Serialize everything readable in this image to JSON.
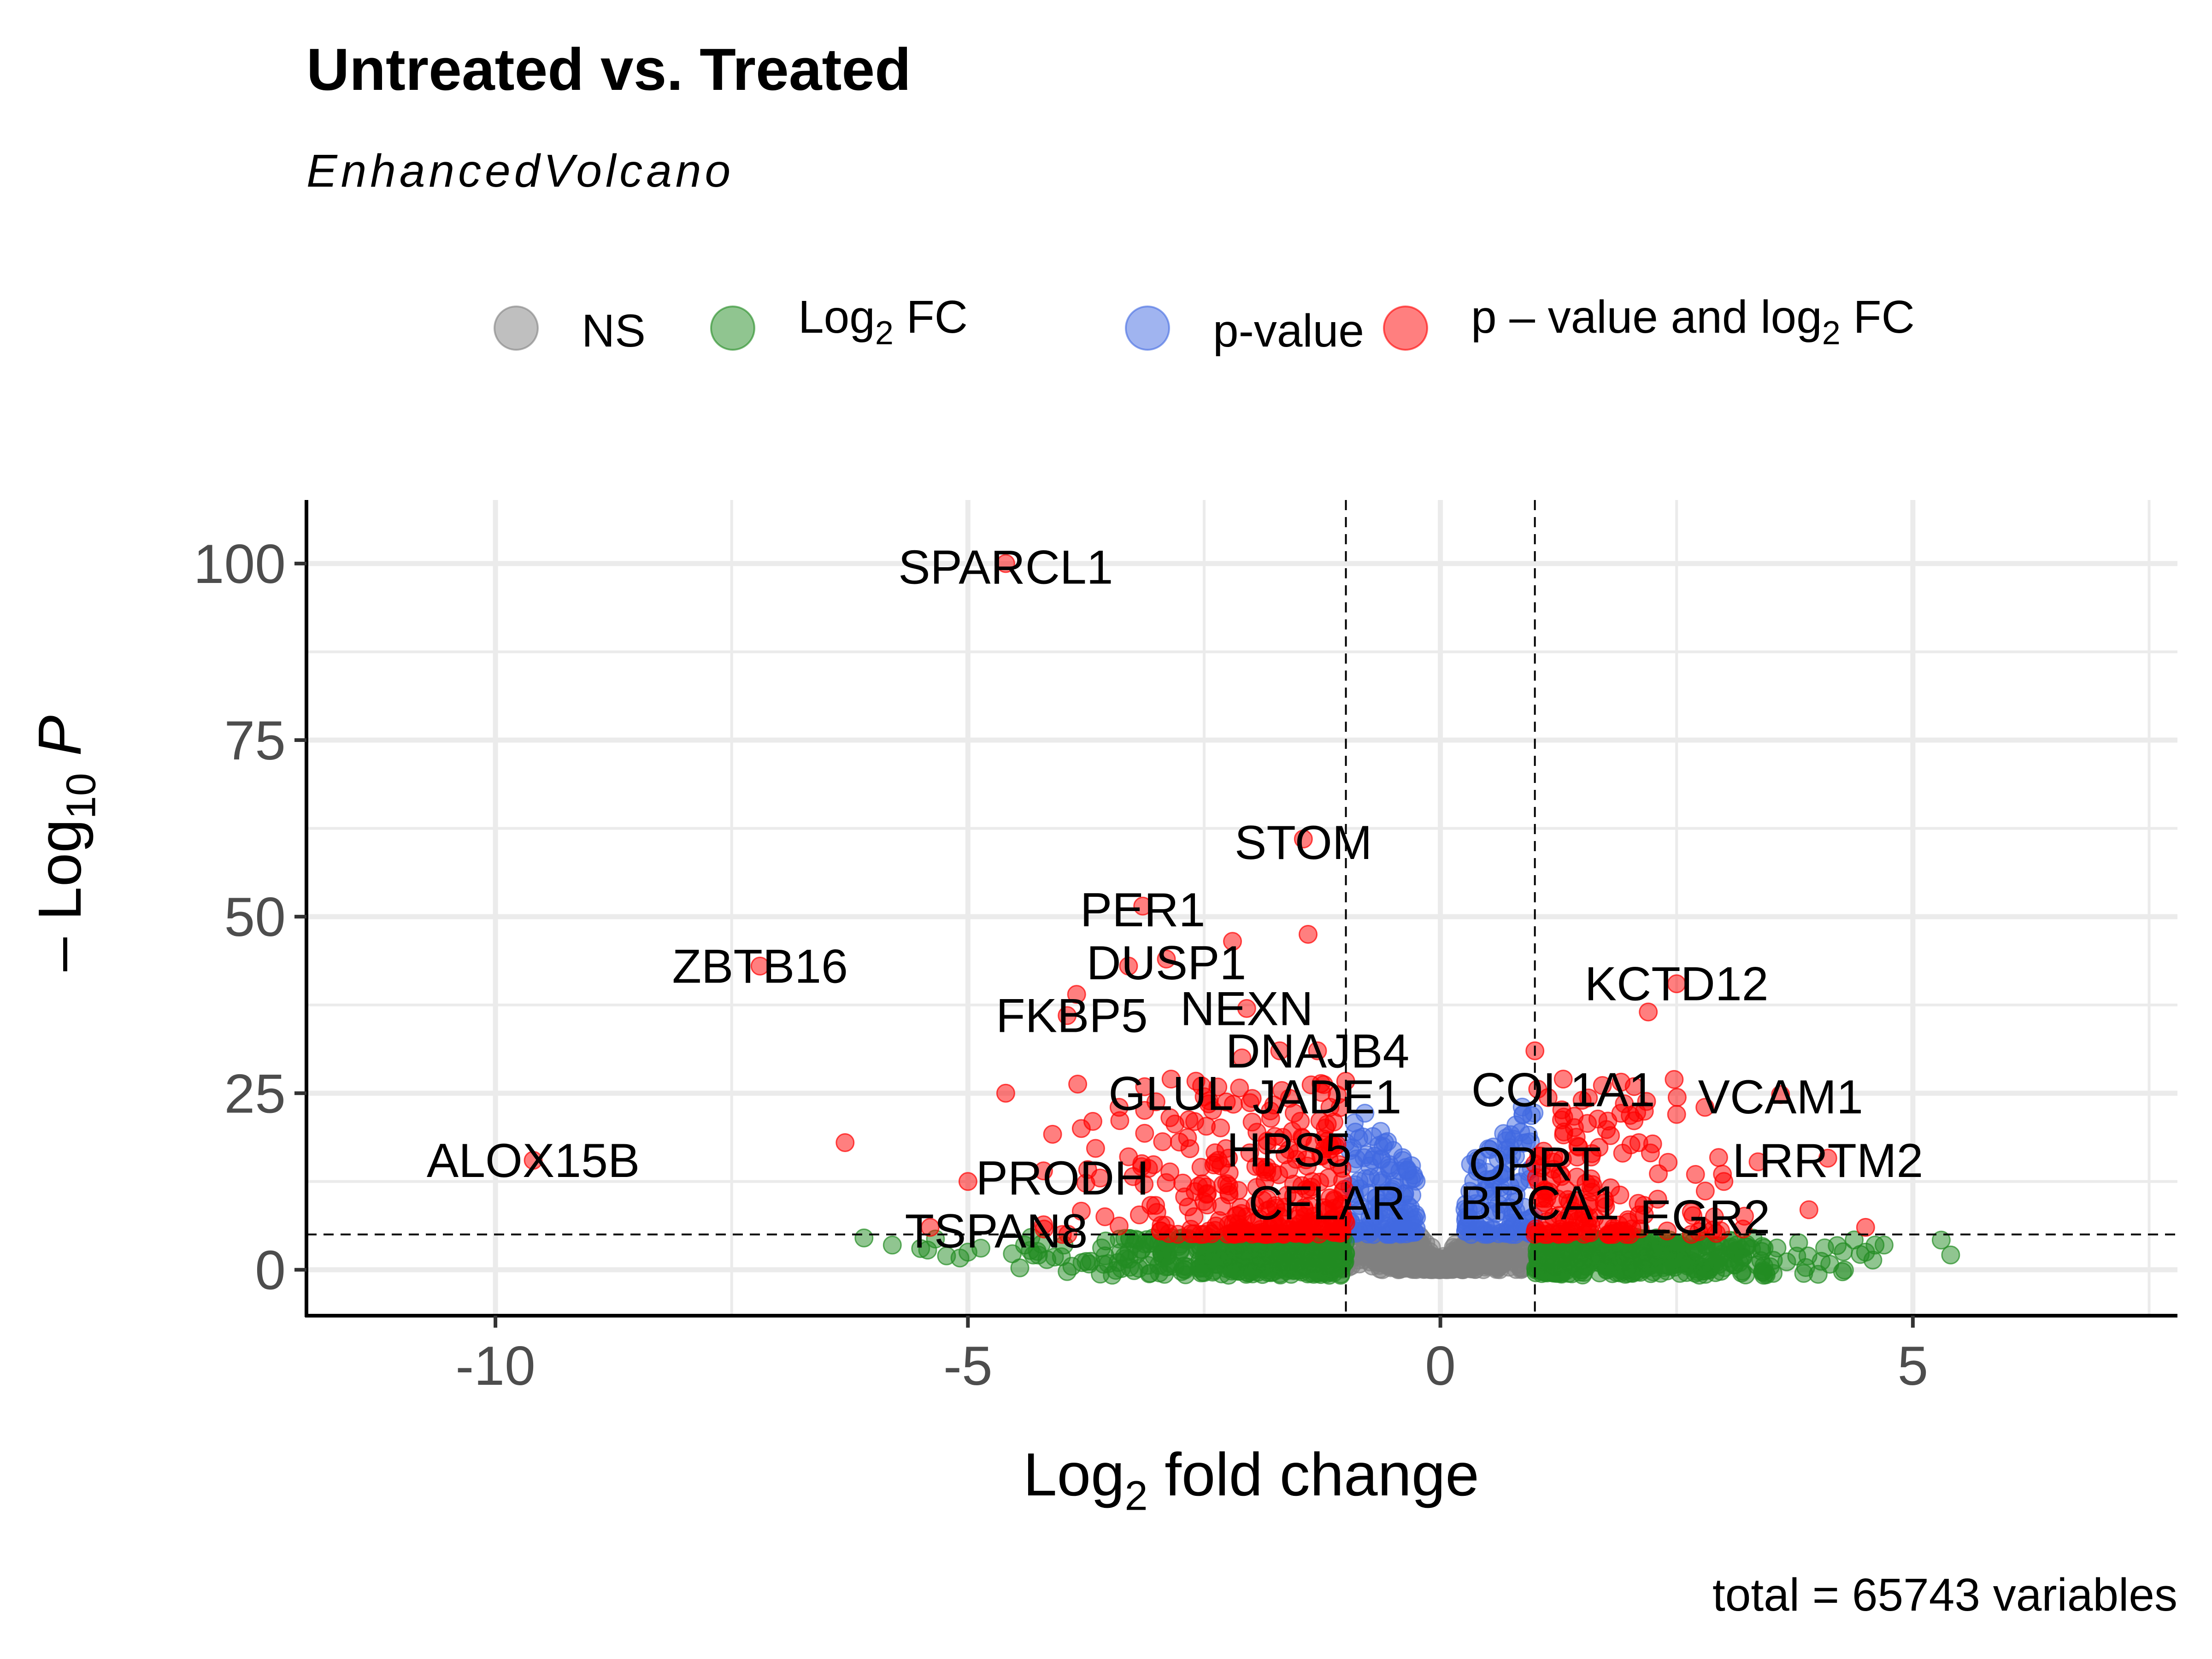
{
  "chart_data": {
    "type": "scatter",
    "title": "Untreated vs. Treated",
    "subtitle": "EnhancedVolcano",
    "caption": "total = 65743 variables",
    "xlabel": {
      "prefix": "Log",
      "sub": "2",
      "suffix": " fold change"
    },
    "ylabel": {
      "prefix": "– Log",
      "sub": "10",
      "suffix": "P"
    },
    "xlim": [
      -12,
      7.8
    ],
    "ylim": [
      -6.5,
      109
    ],
    "x_ticks": [
      -10,
      -5,
      0,
      5
    ],
    "x_tick_labels": [
      "-10",
      "-5",
      "0",
      "5"
    ],
    "y_ticks": [
      0,
      25,
      50,
      75,
      100
    ],
    "y_tick_labels": [
      "0",
      "25",
      "50",
      "75",
      "100"
    ],
    "fc_cutoff": 1,
    "p_cutoff": 5,
    "grid": true,
    "legend_position": "top",
    "legend": [
      {
        "key": "ns",
        "text": "NS",
        "color": "#808080"
      },
      {
        "key": "fc",
        "text": "Log",
        "sub": "2",
        "suffix": " FC",
        "color": "#228b22"
      },
      {
        "key": "p",
        "text": "p-value",
        "color": "#4169e1"
      },
      {
        "key": "both",
        "text": "p – value and log",
        "sub": "2",
        "suffix": " FC",
        "color": "#ff0000"
      }
    ],
    "labels": [
      {
        "text": "SPARCL1",
        "x": -4.6,
        "y": 99.5
      },
      {
        "text": "STOM",
        "x": -1.45,
        "y": 60.5
      },
      {
        "text": "PER1",
        "x": -3.15,
        "y": 51
      },
      {
        "text": "DUSP1",
        "x": -2.9,
        "y": 43.5
      },
      {
        "text": "ZBTB16",
        "x": -7.2,
        "y": 43
      },
      {
        "text": "FKBP5",
        "x": -3.9,
        "y": 36
      },
      {
        "text": "NEXN",
        "x": -2.05,
        "y": 37
      },
      {
        "text": "DNAJB4",
        "x": -1.3,
        "y": 31
      },
      {
        "text": "KCTD12",
        "x": 2.5,
        "y": 40.5
      },
      {
        "text": "GLUL",
        "x": -2.85,
        "y": 25
      },
      {
        "text": "JADE1",
        "x": -1.2,
        "y": 24.5
      },
      {
        "text": "COL1A1",
        "x": 1.3,
        "y": 25.5
      },
      {
        "text": "VCAM1",
        "x": 3.6,
        "y": 24.5
      },
      {
        "text": "ALOX15B",
        "x": -9.6,
        "y": 15.5
      },
      {
        "text": "HPS5",
        "x": -1.6,
        "y": 17
      },
      {
        "text": "LRRTM2",
        "x": 4.1,
        "y": 15.5
      },
      {
        "text": "PRODH",
        "x": -4.0,
        "y": 13
      },
      {
        "text": "OPRT",
        "x": 1.0,
        "y": 15
      },
      {
        "text": "CFLAR",
        "x": -1.2,
        "y": 9.5
      },
      {
        "text": "BRCA1",
        "x": 1.05,
        "y": 9.5
      },
      {
        "text": "EGR2",
        "x": 2.8,
        "y": 7.5
      },
      {
        "text": "TSPAN8",
        "x": -4.7,
        "y": 5.5
      }
    ]
  }
}
